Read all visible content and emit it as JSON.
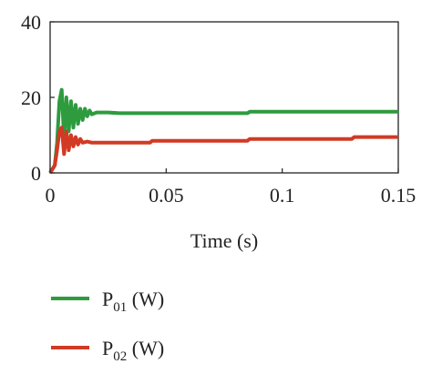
{
  "chart_data": {
    "type": "line",
    "xlabel": "Time (s)",
    "ylabel": "",
    "xlim": [
      0,
      0.15
    ],
    "ylim": [
      0,
      40
    ],
    "x_ticks": [
      "0",
      "0.05",
      "0.1",
      "0.15"
    ],
    "x_tick_values": [
      0,
      0.05,
      0.1,
      0.15
    ],
    "y_ticks": [
      "0",
      "20",
      "40"
    ],
    "y_tick_values": [
      0,
      20,
      40
    ],
    "grid": false,
    "legend_position": "below",
    "series": [
      {
        "name_main": "P",
        "name_sub": "01",
        "name_unit": " (W)",
        "color": "#2e9b3e",
        "x": [
          0,
          0.002,
          0.003,
          0.004,
          0.005,
          0.006,
          0.007,
          0.008,
          0.009,
          0.01,
          0.011,
          0.012,
          0.013,
          0.014,
          0.015,
          0.016,
          0.017,
          0.018,
          0.02,
          0.025,
          0.03,
          0.05,
          0.085,
          0.086,
          0.1,
          0.15
        ],
        "y": [
          0,
          2,
          8,
          19,
          22,
          9,
          20,
          11,
          19,
          12,
          18,
          13,
          17,
          14,
          17,
          15,
          16.5,
          15.5,
          16,
          16,
          15.8,
          15.8,
          15.8,
          16.2,
          16.2,
          16.2
        ]
      },
      {
        "name_main": "P",
        "name_sub": "02",
        "name_unit": " (W)",
        "color": "#d13a24",
        "x": [
          0,
          0.002,
          0.003,
          0.004,
          0.005,
          0.006,
          0.007,
          0.008,
          0.009,
          0.01,
          0.011,
          0.012,
          0.013,
          0.014,
          0.016,
          0.018,
          0.02,
          0.03,
          0.043,
          0.044,
          0.085,
          0.086,
          0.13,
          0.131,
          0.15
        ],
        "y": [
          0,
          2,
          6,
          11,
          12,
          5,
          11,
          6,
          10,
          7,
          9.5,
          7.5,
          9,
          8,
          8.3,
          8,
          8,
          8,
          8,
          8.5,
          8.5,
          9,
          9,
          9.5,
          9.5
        ]
      }
    ]
  }
}
